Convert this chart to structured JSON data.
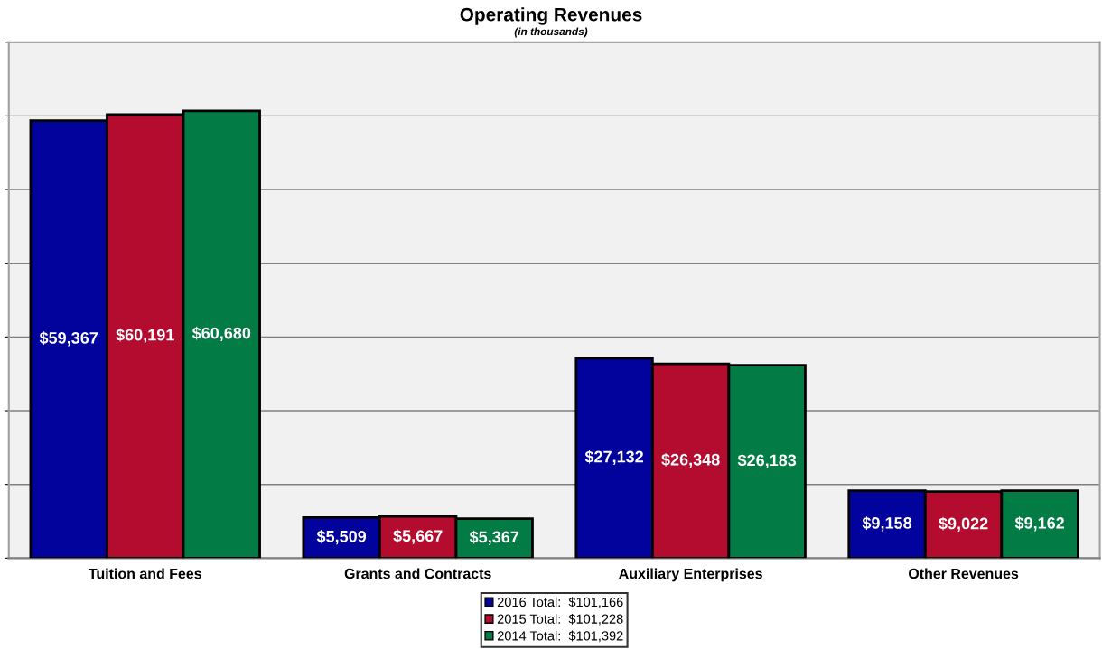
{
  "chart_data": {
    "type": "bar",
    "title": "Operating Revenues",
    "subtitle": "(in thousands)",
    "categories": [
      "Tuition and Fees",
      "Grants and Contracts",
      "Auxiliary Enterprises",
      "Other Revenues"
    ],
    "series": [
      {
        "name": "2016 Total:  $101,166",
        "color": "#02039c",
        "values": [
          59367,
          5509,
          27132,
          9158
        ],
        "value_labels": [
          "$59,367",
          "$5,509",
          "$27,132",
          "$9,158"
        ]
      },
      {
        "name": "2015 Total:  $101,228",
        "color": "#b30c2e",
        "values": [
          60191,
          5667,
          26348,
          9022
        ],
        "value_labels": [
          "$60,191",
          "$5,667",
          "$26,348",
          "$9,022"
        ]
      },
      {
        "name": "2014 Total:  $101,392",
        "color": "#027c44",
        "values": [
          60680,
          5367,
          26183,
          9162
        ],
        "value_labels": [
          "$60,680",
          "$5,367",
          "$26,183",
          "$9,162"
        ]
      }
    ],
    "ylim": [
      0,
      70000
    ],
    "yticks": [
      {
        "value": 0,
        "label": null
      },
      {
        "value": 10000,
        "label": null
      },
      {
        "value": 20000,
        "label": null
      },
      {
        "value": 30000,
        "label": null
      },
      {
        "value": 40000,
        "label": null
      },
      {
        "value": 50000,
        "label": null
      },
      {
        "value": 60000,
        "label": null
      },
      {
        "value": 70000,
        "label": null
      }
    ],
    "tick_labels": "x",
    "grid": "y",
    "legend": "bottom"
  }
}
